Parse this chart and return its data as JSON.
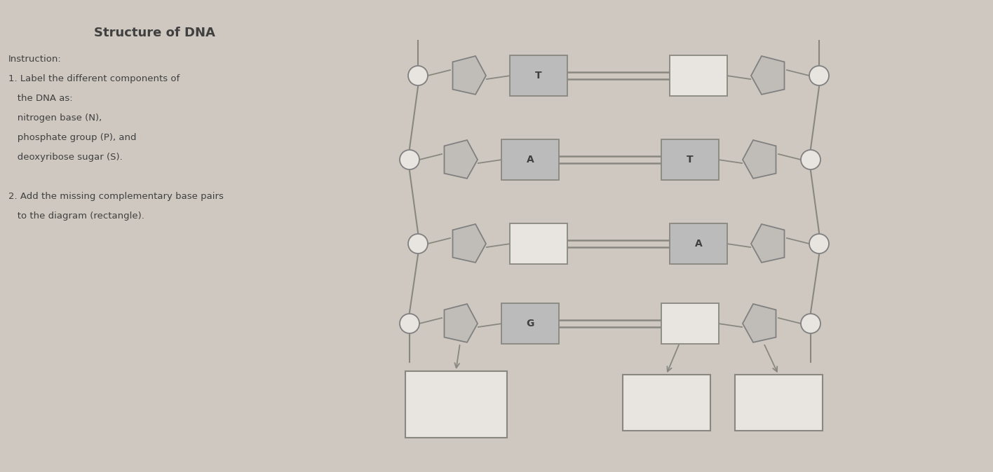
{
  "title": "Structure of DNA",
  "instruction_lines": [
    "Instruction:",
    "1. Label the different components of",
    "   the DNA as:",
    "   nitrogen base (N),",
    "   phosphate group (P), and",
    "   deoxyribose sugar (S).",
    "",
    "2. Add the missing complementary base pairs",
    "   to the diagram (rectangle)."
  ],
  "bg_color": "#cfc8c0",
  "text_color": "#404040",
  "line_color": "#888880",
  "box_fill_shaded": "#bbbbbb",
  "box_fill_empty": "#e8e4e0",
  "box_edge": "#888880",
  "pent_fill": "#c0bdb8",
  "pent_edge": "#808080",
  "circ_fill": "#e8e4e0",
  "circ_edge": "#808080",
  "base_pairs": [
    {
      "left": "T",
      "right": "",
      "left_shaded": true,
      "right_shaded": false
    },
    {
      "left": "A",
      "right": "T",
      "left_shaded": true,
      "right_shaded": true
    },
    {
      "left": "",
      "right": "A",
      "left_shaded": false,
      "right_shaded": true
    },
    {
      "left": "G",
      "right": "",
      "left_shaded": true,
      "right_shaded": false
    }
  ]
}
